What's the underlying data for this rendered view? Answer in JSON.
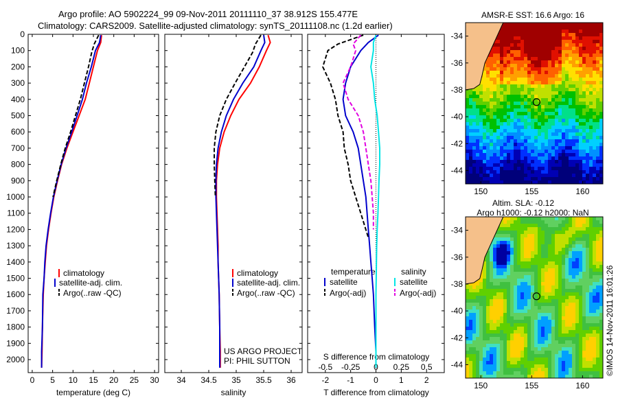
{
  "header": {
    "title_line1": "Argo profile: AO 5902224_99 09-Nov-2011 20111110_37 38.912S 155.477E",
    "title_line2": "Climatology: CARS2009. Satellite-adjusted climatology: synTS_20111108.nc (1.2d earlier)"
  },
  "footer_stamp": "©IMOS 14-Nov-2011 16:01:26",
  "colors": {
    "climatology": "#ff0000",
    "satellite": "#0000cc",
    "argo": "#000000",
    "sat_salinity": "#00e5e5",
    "argo_salinity": "#e000e0",
    "land": "#f5c08a"
  },
  "chart_data": [
    {
      "type": "line",
      "panel": "temperature",
      "xlabel": "temperature (deg C)",
      "ylabel": "",
      "xlim": [
        -1,
        31
      ],
      "ylim": [
        2080,
        0
      ],
      "xticks": [
        0,
        5,
        10,
        15,
        20,
        25,
        30
      ],
      "yticks": [
        0,
        100,
        200,
        300,
        400,
        500,
        600,
        700,
        800,
        900,
        1000,
        1100,
        1200,
        1300,
        1400,
        1500,
        1600,
        1700,
        1800,
        1900,
        2000
      ],
      "legend": [
        "climatology",
        "satellite-adj. clim.",
        "Argo(..raw -QC)"
      ],
      "legend_position": "lower-center",
      "series": [
        {
          "name": "climatology",
          "color": "#ff0000",
          "dash": "",
          "width": 2,
          "x": [
            17.0,
            16.8,
            16.0,
            15.0,
            14.0,
            13.0,
            11.5,
            10.0,
            8.5,
            7.2,
            6.2,
            5.3,
            4.6,
            4.0,
            3.5,
            3.2,
            2.9,
            2.7,
            2.5,
            2.4,
            2.3
          ],
          "y": [
            5,
            50,
            100,
            200,
            300,
            400,
            500,
            600,
            700,
            800,
            900,
            1000,
            1100,
            1200,
            1300,
            1400,
            1500,
            1600,
            1800,
            1950,
            2050
          ]
        },
        {
          "name": "satellite-adj. clim.",
          "color": "#0000cc",
          "dash": "",
          "width": 2,
          "x": [
            16.8,
            16.5,
            15.5,
            14.5,
            13.3,
            12.3,
            11.0,
            9.7,
            8.3,
            7.1,
            6.1,
            5.2,
            4.5,
            3.9,
            3.4,
            3.1,
            2.9,
            2.6,
            2.5,
            2.3,
            2.3
          ],
          "y": [
            5,
            50,
            100,
            200,
            300,
            400,
            500,
            600,
            700,
            800,
            900,
            1000,
            1100,
            1200,
            1300,
            1400,
            1500,
            1600,
            1800,
            1950,
            2050
          ]
        },
        {
          "name": "Argo(..raw -QC)",
          "color": "#000000",
          "dash": "6,3",
          "width": 2,
          "x": [
            16.3,
            15.2,
            14.6,
            13.8,
            12.8,
            11.8,
            10.6,
            9.4,
            8.1,
            7.0,
            6.0,
            5.1
          ],
          "y": [
            5,
            60,
            110,
            200,
            300,
            400,
            500,
            600,
            700,
            800,
            900,
            1000
          ]
        }
      ]
    },
    {
      "type": "line",
      "panel": "salinity",
      "xlabel": "salinity",
      "xlim": [
        33.7,
        36.2
      ],
      "ylim": [
        2080,
        0
      ],
      "xticks": [
        34,
        34.5,
        35,
        35.5,
        36
      ],
      "legend": [
        "climatology",
        "satellite-adj. clim.",
        "Argo(..raw -QC)"
      ],
      "legend_position": "lower-center",
      "annotation": [
        "US ARGO PROJECT",
        "PI: PHIL SUTTON"
      ],
      "series": [
        {
          "name": "climatology",
          "color": "#ff0000",
          "dash": "",
          "width": 2,
          "x": [
            35.58,
            35.62,
            35.55,
            35.42,
            35.26,
            35.05,
            34.9,
            34.78,
            34.7,
            34.66,
            34.64,
            34.64,
            34.65,
            34.66,
            34.67,
            34.67,
            34.68,
            34.69,
            34.7,
            34.71,
            34.71
          ],
          "y": [
            5,
            50,
            100,
            200,
            300,
            400,
            500,
            600,
            700,
            800,
            900,
            1000,
            1100,
            1200,
            1300,
            1400,
            1500,
            1600,
            1800,
            1950,
            2050
          ]
        },
        {
          "name": "satellite-adj. clim.",
          "color": "#0000cc",
          "dash": "",
          "width": 2,
          "x": [
            35.5,
            35.52,
            35.45,
            35.32,
            35.12,
            34.95,
            34.82,
            34.73,
            34.67,
            34.64,
            34.63,
            34.63,
            34.64,
            34.65,
            34.66,
            34.67,
            34.68,
            34.69,
            34.7,
            34.7,
            34.7
          ],
          "y": [
            5,
            50,
            100,
            200,
            300,
            400,
            500,
            600,
            700,
            800,
            900,
            1000,
            1100,
            1200,
            1300,
            1400,
            1500,
            1600,
            1800,
            1950,
            2050
          ]
        },
        {
          "name": "Argo(..raw -QC)",
          "color": "#000000",
          "dash": "6,3",
          "width": 2,
          "x": [
            35.45,
            35.35,
            35.3,
            35.15,
            34.98,
            34.82,
            34.7,
            34.63,
            34.6,
            34.6,
            34.61,
            34.62
          ],
          "y": [
            5,
            60,
            110,
            200,
            300,
            400,
            500,
            600,
            700,
            800,
            900,
            1000
          ]
        }
      ]
    },
    {
      "type": "line",
      "panel": "difference",
      "xlabel": "T difference from climatology",
      "x2label": "S difference from climatology",
      "xlim": [
        -2.7,
        2.7
      ],
      "ylim": [
        2080,
        0
      ],
      "xticks": [
        -2,
        -1,
        0,
        1,
        2
      ],
      "x2ticks": [
        "-0.5",
        "-0.25",
        "0",
        "0.25",
        "0.5"
      ],
      "legend": [
        "temperature",
        "satellite",
        "Argo(-adj)",
        "salinity",
        "satellite",
        "Argo(-adj)"
      ],
      "series": [
        {
          "name": "satellite",
          "group": "temperature",
          "color": "#0000cc",
          "dash": "",
          "width": 2,
          "x": [
            0.1,
            -0.3,
            -0.6,
            -1.0,
            -1.2,
            -1.3,
            -1.2,
            -0.9,
            -0.7,
            -0.6,
            -0.5,
            -0.4,
            -0.35,
            -0.3,
            -0.25,
            -0.2,
            -0.15,
            -0.1,
            -0.05,
            0.0,
            0.0
          ],
          "y": [
            5,
            50,
            100,
            200,
            300,
            400,
            500,
            600,
            700,
            800,
            900,
            1000,
            1100,
            1200,
            1300,
            1400,
            1500,
            1600,
            1800,
            1950,
            2050
          ]
        },
        {
          "name": "Argo(-adj)",
          "group": "temperature",
          "color": "#000000",
          "dash": "6,3",
          "width": 2,
          "x": [
            -0.5,
            -1.5,
            -1.9,
            -2.1,
            -1.8,
            -1.6,
            -1.5,
            -1.3,
            -1.25,
            -1.1,
            -1.0,
            -0.6,
            -0.3
          ],
          "y": [
            5,
            60,
            100,
            200,
            300,
            400,
            500,
            600,
            700,
            800,
            900,
            1100,
            1250
          ]
        },
        {
          "name": "satellite",
          "group": "salinity",
          "color": "#00e5e5",
          "dash": "",
          "width": 2,
          "x": [
            0.0,
            -0.1,
            -0.1,
            -0.2,
            -0.1,
            -0.05,
            0.05,
            0.1,
            0.15,
            0.15,
            0.12,
            0.1,
            0.08,
            0.05,
            0.03,
            0.02,
            0.01,
            0.0,
            0.0,
            0.0,
            0.0
          ],
          "y": [
            5,
            50,
            100,
            200,
            300,
            400,
            500,
            600,
            700,
            800,
            900,
            1000,
            1100,
            1200,
            1300,
            1400,
            1500,
            1600,
            1800,
            1950,
            2050
          ]
        },
        {
          "name": "Argo(-adj)",
          "group": "salinity",
          "color": "#e000e0",
          "dash": "6,3",
          "width": 2,
          "x": [
            -0.6,
            -0.9,
            -0.8,
            -1.0,
            -1.3,
            -1.1,
            -0.7,
            -0.5,
            -0.4,
            -0.3,
            -0.2,
            -0.15,
            -0.1,
            -0.1
          ],
          "y": [
            5,
            60,
            100,
            200,
            300,
            400,
            500,
            600,
            700,
            800,
            900,
            1000,
            1100,
            1200
          ]
        }
      ]
    },
    {
      "type": "heatmap",
      "panel": "sst_map",
      "title": "AMSR-E SST: 16.6 Argo: 16",
      "xlim": [
        148.5,
        162
      ],
      "ylim": [
        -45,
        -33
      ],
      "xticks": [
        150,
        155,
        160
      ],
      "yticks": [
        -34,
        -36,
        -38,
        -40,
        -42,
        -44
      ],
      "marker": {
        "lon": 155.477,
        "lat": -38.912
      }
    },
    {
      "type": "heatmap",
      "panel": "sla_map",
      "title_line1": "Altim. SLA: -0.12",
      "title_line2": "Argo h1000: -0.12 h2000: NaN",
      "xlim": [
        148.5,
        162
      ],
      "ylim": [
        -45,
        -33
      ],
      "xticks": [
        150,
        155,
        160
      ],
      "yticks": [
        -34,
        -36,
        -38,
        -40,
        -42,
        -44
      ],
      "marker": {
        "lon": 155.477,
        "lat": -38.912
      }
    }
  ]
}
